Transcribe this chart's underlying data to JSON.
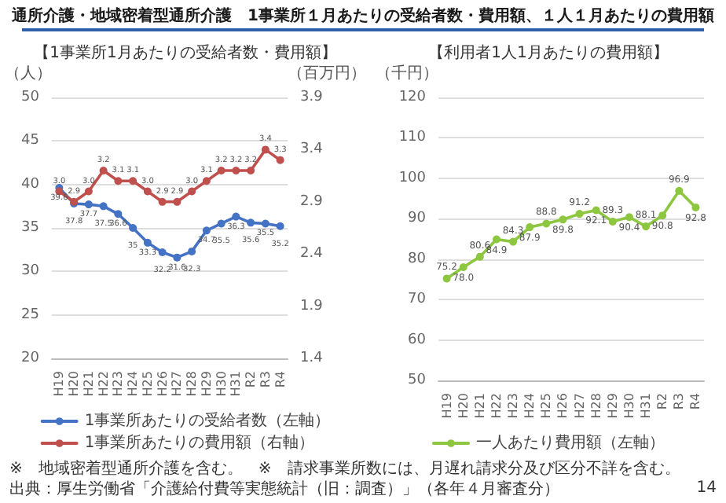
{
  "chart_data": [
    {
      "type": "line",
      "title": "【1事業所1月あたりの受給者数・費用額】",
      "ylabel": "（人）",
      "y2label": "（百万円）",
      "annotations": [
        "通所介護・地域密着型通所介護　1事業所１月あたりの受給者数・費用額、１人１月あたりの費用額",
        "※　地域密着型通所介護を含む。　※　請求事業所数には、月遅れ請求分及び区分不詳を含む。",
        "出典：厚生労働省「介護給付費等実態統計（旧：調査）」（各年４月審査分）"
      ],
      "categories": [
        "H19",
        "H20",
        "H21",
        "H22",
        "H23",
        "H24",
        "H25",
        "H26",
        "H27",
        "H28",
        "H29",
        "H30",
        "H31",
        "R2",
        "R3",
        "R4"
      ],
      "series": [
        {
          "name": "1事業所あたりの受給者数（左軸）",
          "color": "#4472c4",
          "values": [
            39.6,
            37.8,
            37.7,
            37.5,
            36.6,
            35,
            33.3,
            32.2,
            31.6,
            32.3,
            34.7,
            35.5,
            36.3,
            35.6,
            35.5,
            35.2
          ],
          "value_labels": [
            "39.6",
            "37.8",
            "37.7",
            "37.5",
            "36.6",
            "35",
            "33.3",
            "32.2",
            "31.6",
            "32.3",
            "34.7",
            "35.5",
            "36.3",
            "35.6",
            "35.5",
            "35.2"
          ]
        },
        {
          "name": "1事業所あたりの費用額（右軸）",
          "color": "#c0504d",
          "axis": "y2",
          "values": [
            3.0,
            2.9,
            3.0,
            3.2,
            3.1,
            3.1,
            3.0,
            2.9,
            2.9,
            3.0,
            3.1,
            3.2,
            3.2,
            3.2,
            3.4,
            3.3
          ],
          "value_labels": [
            "3.0",
            "2.9",
            "3.0",
            "3.2",
            "3.1",
            "3.1",
            "3.0",
            "2.9",
            "2.9",
            "3.0",
            "3.1",
            "3.2",
            "3.2",
            "3.2",
            "3.4",
            "3.3"
          ]
        }
      ],
      "ylim": [
        20,
        50
      ],
      "yticks": [
        20,
        25,
        30,
        35,
        40,
        45,
        50
      ],
      "y2lim": [
        1.4,
        3.9
      ],
      "y2ticks": [
        1.4,
        1.9,
        2.4,
        2.9,
        3.4,
        3.9
      ],
      "grid": "y",
      "legend": "bottom",
      "marker": "circle",
      "line_style": "solid"
    },
    {
      "type": "line",
      "title": "【利用者1人1月あたりの費用額】",
      "ylabel": "（千円）",
      "annotations": [
        "14"
      ],
      "categories": [
        "H19",
        "H20",
        "H21",
        "H22",
        "H23",
        "H24",
        "H25",
        "H26",
        "H27",
        "H28",
        "H29",
        "H30",
        "H31",
        "R2",
        "R3",
        "R4"
      ],
      "series": [
        {
          "name": "一人あたり費用額（左軸）",
          "color": "#8dc63f",
          "values": [
            75.2,
            78.0,
            80.6,
            84.9,
            84.3,
            87.9,
            88.8,
            89.8,
            91.2,
            92.1,
            89.3,
            90.4,
            88.1,
            90.8,
            96.9,
            92.8
          ],
          "value_labels": [
            "75.2",
            "78.0",
            "80.6",
            "84.9",
            "84.3",
            "87.9",
            "88.8",
            "89.8",
            "91.2",
            "92.1",
            "89.3",
            "90.4",
            "88.1",
            "90.8",
            "96.9",
            "92.8"
          ]
        }
      ],
      "ylim": [
        50,
        120
      ],
      "yticks": [
        50,
        60,
        70,
        80,
        90,
        100,
        110,
        120
      ],
      "grid": "y",
      "legend": "bottom",
      "marker": "circle",
      "line_style": "solid"
    }
  ]
}
